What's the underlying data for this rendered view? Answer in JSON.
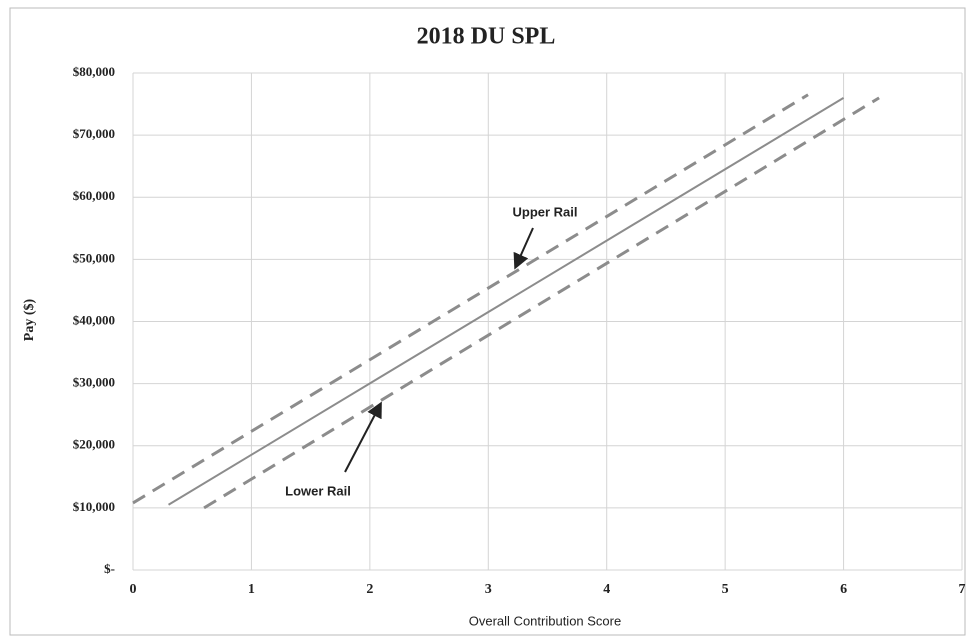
{
  "chart_data": {
    "type": "line",
    "title": "2018 DU SPL",
    "xlabel": "Overall Contribution Score",
    "ylabel": "Pay ($)",
    "xlim": [
      0,
      7
    ],
    "xticks": [
      0,
      1,
      2,
      3,
      4,
      5,
      6,
      7
    ],
    "ylim": [
      0,
      80000
    ],
    "yticks": [
      {
        "value": 0,
        "label": "$-"
      },
      {
        "value": 10000,
        "label": "$10,000"
      },
      {
        "value": 20000,
        "label": "$20,000"
      },
      {
        "value": 30000,
        "label": "$30,000"
      },
      {
        "value": 40000,
        "label": "$40,000"
      },
      {
        "value": 50000,
        "label": "$50,000"
      },
      {
        "value": 60000,
        "label": "$60,000"
      },
      {
        "value": 70000,
        "label": "$70,000"
      },
      {
        "value": 80000,
        "label": "$80,000"
      }
    ],
    "grid": true,
    "series": [
      {
        "color": "#8c8c8c",
        "dashed": true,
        "x": [
          0,
          5.7
        ],
        "values": [
          10800,
          76500
        ]
      },
      {
        "color": "#8c8c8c",
        "dashed": false,
        "x": [
          0.3,
          6
        ],
        "values": [
          10500,
          76000
        ]
      },
      {
        "color": "#8c8c8c",
        "dashed": true,
        "x": [
          0.6,
          6.3
        ],
        "values": [
          10000,
          76000
        ]
      }
    ],
    "annotations": [
      "Upper Rail",
      "Lower Rail"
    ]
  }
}
